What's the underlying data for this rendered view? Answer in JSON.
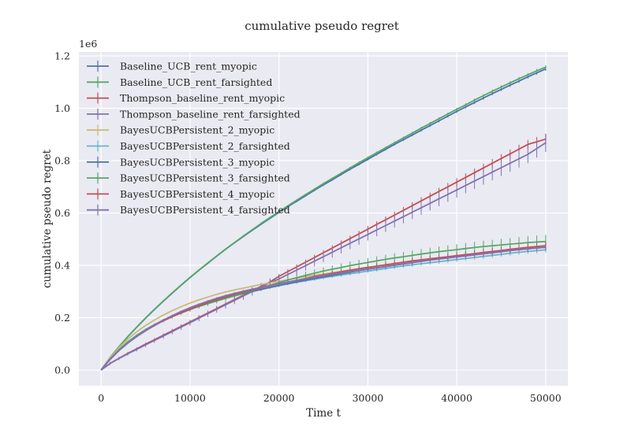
{
  "chart_data": {
    "type": "line",
    "title": "cumulative pseudo regret",
    "xlabel": "Time t",
    "ylabel": "cumulative pseudo regret",
    "y_offset_label": "1e6",
    "xlim": [
      -2500,
      52500
    ],
    "ylim": [
      -60000,
      1215000
    ],
    "x_ticks": [
      0,
      10000,
      20000,
      30000,
      40000,
      50000
    ],
    "y_ticks": [
      0,
      200000,
      400000,
      600000,
      800000,
      1000000,
      1200000
    ],
    "x_tick_labels": [
      "0",
      "10000",
      "20000",
      "30000",
      "40000",
      "50000"
    ],
    "y_tick_labels": [
      "0.0",
      "0.2",
      "0.4",
      "0.6",
      "0.8",
      "1.0",
      "1.2"
    ],
    "grid": true,
    "legend_position": "top-left",
    "x": [
      0,
      1000,
      2000,
      3000,
      4000,
      5000,
      6000,
      7000,
      8000,
      9000,
      10000,
      11000,
      12000,
      13000,
      14000,
      15000,
      16000,
      17000,
      18000,
      19000,
      20000,
      21000,
      22000,
      23000,
      24000,
      25000,
      26000,
      27000,
      28000,
      29000,
      30000,
      31000,
      32000,
      33000,
      34000,
      35000,
      36000,
      37000,
      38000,
      39000,
      40000,
      41000,
      42000,
      43000,
      44000,
      45000,
      46000,
      47000,
      48000,
      49000,
      50000
    ],
    "series": [
      {
        "name": "Baseline_UCB_rent_myopic",
        "color": "#4c72b0",
        "error": 7000,
        "values": [
          0,
          47000,
          88000,
          127000,
          163000,
          198000,
          231000,
          263000,
          294000,
          324000,
          353000,
          381000,
          408000,
          435000,
          461000,
          486000,
          510000,
          534000,
          557000,
          580000,
          602000,
          624000,
          645000,
          666000,
          687000,
          707000,
          727000,
          747000,
          767000,
          786000,
          805000,
          824000,
          843000,
          862000,
          880000,
          898000,
          916000,
          934000,
          952000,
          970000,
          988000,
          1005000,
          1022000,
          1039000,
          1056000,
          1072000,
          1088000,
          1104000,
          1120000,
          1135000,
          1150000
        ]
      },
      {
        "name": "Baseline_UCB_rent_farsighted",
        "color": "#55a868",
        "error": 7000,
        "values": [
          0,
          48000,
          89000,
          128000,
          164000,
          199000,
          232000,
          264000,
          295000,
          325000,
          354000,
          382000,
          409000,
          436000,
          462000,
          487000,
          512000,
          536000,
          560000,
          583000,
          605000,
          627000,
          649000,
          670000,
          691000,
          712000,
          732000,
          752000,
          772000,
          792000,
          811000,
          830000,
          849000,
          868000,
          887000,
          905000,
          924000,
          942000,
          960000,
          978000,
          996000,
          1013000,
          1031000,
          1048000,
          1065000,
          1081000,
          1097000,
          1113000,
          1128000,
          1143000,
          1157000
        ]
      },
      {
        "name": "Thompson_baseline_rent_myopic",
        "color": "#c44e52",
        "error": 18000,
        "values": [
          0,
          25000,
          45000,
          64000,
          81000,
          99000,
          116000,
          133000,
          150000,
          167000,
          184000,
          201000,
          218000,
          235000,
          252000,
          269000,
          286000,
          303000,
          320000,
          337000,
          358000,
          376000,
          394000,
          412000,
          430000,
          448000,
          466000,
          484000,
          502000,
          520000,
          538000,
          556000,
          574000,
          592000,
          610000,
          628000,
          646000,
          664000,
          682000,
          700000,
          718000,
          736000,
          754000,
          772000,
          790000,
          808000,
          826000,
          844000,
          862000,
          872000,
          882000
        ]
      },
      {
        "name": "Thompson_baseline_rent_farsighted",
        "color": "#8172b2",
        "error": 35000,
        "values": [
          0,
          25000,
          44000,
          62000,
          79000,
          96000,
          113000,
          130000,
          147000,
          164000,
          181000,
          198000,
          215000,
          232000,
          249000,
          266000,
          283000,
          300000,
          317000,
          334000,
          348000,
          365000,
          382000,
          399000,
          416000,
          433000,
          450000,
          467000,
          484000,
          501000,
          518000,
          535000,
          552000,
          569000,
          586000,
          603000,
          620000,
          637000,
          654000,
          671000,
          688000,
          705000,
          722000,
          739000,
          756000,
          773000,
          790000,
          807000,
          824000,
          846000,
          868000
        ]
      },
      {
        "name": "BayesUCBPersistent_2_myopic",
        "color": "#ccb974",
        "error": 7000,
        "values": [
          0,
          46000,
          85000,
          118000,
          146000,
          170000,
          191000,
          210000,
          227000,
          242000,
          256000,
          268000,
          279000,
          289000,
          298000,
          306000,
          313000,
          320000,
          327000,
          333000,
          339000,
          345000,
          351000,
          357000,
          362000,
          367000,
          372000,
          377000,
          382000,
          387000,
          392000,
          397000,
          402000,
          406000,
          410000,
          414000,
          418000,
          422000,
          426000,
          430000,
          434000,
          438000,
          442000,
          446000,
          450000,
          454000,
          458000,
          462000,
          466000,
          469000,
          472000
        ]
      },
      {
        "name": "BayesUCBPersistent_2_farsighted",
        "color": "#64b5cd",
        "error": 10000,
        "values": [
          0,
          42000,
          78000,
          108000,
          133000,
          155000,
          174000,
          191000,
          206000,
          220000,
          233000,
          245000,
          256000,
          266000,
          275000,
          284000,
          292000,
          300000,
          308000,
          315000,
          322000,
          329000,
          335000,
          341000,
          347000,
          353000,
          358000,
          363000,
          368000,
          373000,
          378000,
          383000,
          388000,
          393000,
          398000,
          402000,
          406000,
          410000,
          414000,
          418000,
          422000,
          426000,
          430000,
          434000,
          438000,
          442000,
          446000,
          450000,
          453000,
          456000,
          459000
        ]
      },
      {
        "name": "BayesUCBPersistent_3_myopic",
        "color": "#4c72b0",
        "error": 10000,
        "values": [
          0,
          41000,
          76000,
          106000,
          131000,
          153000,
          172000,
          189000,
          204000,
          218000,
          231000,
          243000,
          254000,
          264000,
          274000,
          283000,
          292000,
          300000,
          308000,
          316000,
          323000,
          330000,
          337000,
          344000,
          350000,
          356000,
          362000,
          368000,
          374000,
          380000,
          385000,
          390000,
          395000,
          400000,
          405000,
          410000,
          415000,
          420000,
          424000,
          428000,
          432000,
          436000,
          440000,
          444000,
          448000,
          452000,
          456000,
          460000,
          463000,
          466000,
          469000
        ]
      },
      {
        "name": "BayesUCBPersistent_3_farsighted",
        "color": "#55a868",
        "error": 25000,
        "values": [
          0,
          41000,
          76000,
          106000,
          131000,
          153000,
          172000,
          189000,
          204000,
          218000,
          231000,
          243000,
          254000,
          264000,
          274000,
          284000,
          294000,
          304000,
          314000,
          324000,
          334000,
          344000,
          353000,
          362000,
          370000,
          378000,
          385000,
          392000,
          399000,
          405000,
          411000,
          417000,
          423000,
          428000,
          433000,
          438000,
          443000,
          448000,
          452000,
          456000,
          460000,
          464000,
          468000,
          472000,
          475000,
          478000,
          481000,
          484000,
          487000,
          489000,
          491000
        ]
      },
      {
        "name": "BayesUCBPersistent_4_myopic",
        "color": "#c44e52",
        "error": 15000,
        "values": [
          0,
          40000,
          74000,
          103000,
          128000,
          150000,
          170000,
          188000,
          204000,
          219000,
          233000,
          246000,
          258000,
          269000,
          279000,
          289000,
          298000,
          306000,
          314000,
          322000,
          329000,
          336000,
          343000,
          350000,
          357000,
          363000,
          369000,
          375000,
          381000,
          387000,
          392000,
          397000,
          402000,
          407000,
          412000,
          417000,
          421000,
          425000,
          429000,
          433000,
          437000,
          441000,
          445000,
          449000,
          453000,
          457000,
          461000,
          465000,
          469000,
          472000,
          475000
        ]
      },
      {
        "name": "BayesUCBPersistent_4_farsighted",
        "color": "#8172b2",
        "error": 12000,
        "values": [
          0,
          40000,
          74000,
          103000,
          128000,
          151000,
          172000,
          191000,
          208000,
          224000,
          238000,
          251000,
          263000,
          274000,
          284000,
          293000,
          301000,
          309000,
          316000,
          323000,
          330000,
          336000,
          342000,
          348000,
          354000,
          360000,
          366000,
          371000,
          376000,
          381000,
          386000,
          391000,
          396000,
          401000,
          406000,
          411000,
          416000,
          420000,
          424000,
          428000,
          432000,
          436000,
          440000,
          444000,
          448000,
          452000,
          456000,
          460000,
          463000,
          466000,
          469000
        ]
      }
    ]
  }
}
